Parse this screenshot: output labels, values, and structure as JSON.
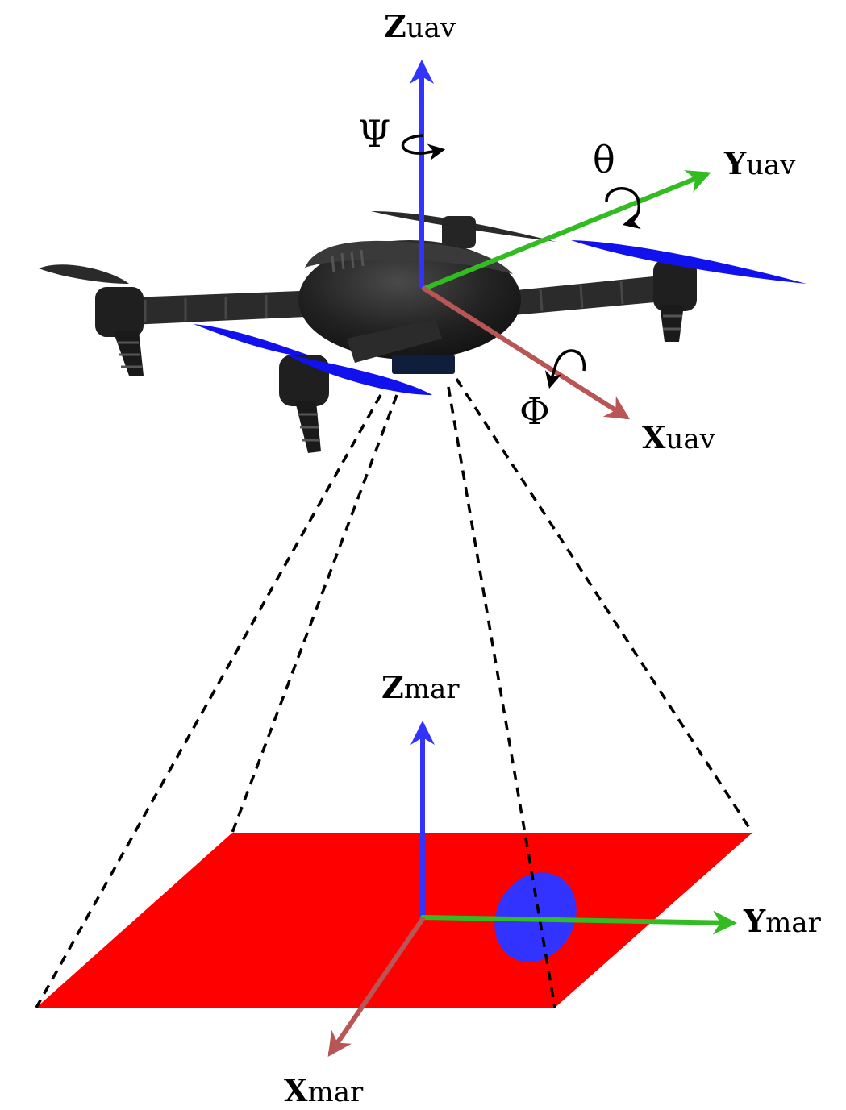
{
  "colors": {
    "z_axis": "#3333ff",
    "y_axis": "#33bb22",
    "x_axis": "#b85555",
    "marker_plane": "#ff0000",
    "marker_ellipse": "#3333ff",
    "propeller_blue": "#1111ee",
    "drone_body": "#1e1e1e"
  },
  "uav_frame": {
    "z_label": {
      "bold": "Z",
      "sub": "uav"
    },
    "y_label": {
      "bold": "Y",
      "sub": "uav"
    },
    "x_label": {
      "bold": "X",
      "sub": "uav"
    },
    "yaw_symbol": "Ψ",
    "pitch_symbol": "θ",
    "roll_symbol": "Φ"
  },
  "marker_frame": {
    "z_label": {
      "bold": "Z",
      "sub": "mar"
    },
    "y_label": {
      "bold": "Y",
      "sub": "mar"
    },
    "x_label": {
      "bold": "X",
      "sub": "mar"
    }
  },
  "icons": {
    "drone": "quadcopter-icon",
    "camera": "camera-icon"
  }
}
